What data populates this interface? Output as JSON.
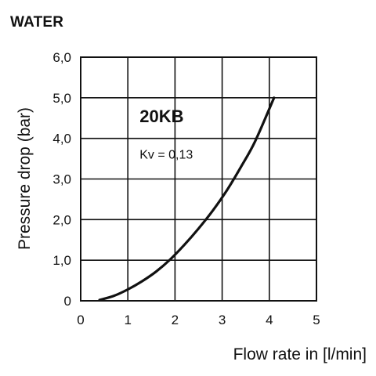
{
  "heading": "WATER",
  "chart_data": {
    "type": "line",
    "title": "",
    "xlabel": "Flow rate in [l/min]",
    "ylabel": "Pressure drop (bar)",
    "xlim": [
      0,
      5
    ],
    "ylim": [
      0,
      6
    ],
    "x_ticks": [
      {
        "value": 0,
        "label": "0"
      },
      {
        "value": 1,
        "label": "1"
      },
      {
        "value": 2,
        "label": "2"
      },
      {
        "value": 3,
        "label": "3"
      },
      {
        "value": 4,
        "label": "4"
      },
      {
        "value": 5,
        "label": "5"
      }
    ],
    "y_ticks": [
      {
        "value": 0,
        "label": "0"
      },
      {
        "value": 1,
        "label": "1,0"
      },
      {
        "value": 2,
        "label": "2,0"
      },
      {
        "value": 3,
        "label": "3,0"
      },
      {
        "value": 4,
        "label": "4,0"
      },
      {
        "value": 5,
        "label": "5,0"
      },
      {
        "value": 6,
        "label": "6,0"
      }
    ],
    "grid": true,
    "series": [
      {
        "points": [
          [
            0.4,
            0.02
          ],
          [
            0.7,
            0.12
          ],
          [
            1.0,
            0.28
          ],
          [
            1.3,
            0.48
          ],
          [
            1.6,
            0.72
          ],
          [
            1.9,
            1.02
          ],
          [
            2.2,
            1.38
          ],
          [
            2.5,
            1.78
          ],
          [
            2.8,
            2.22
          ],
          [
            3.1,
            2.72
          ],
          [
            3.4,
            3.3
          ],
          [
            3.7,
            3.93
          ],
          [
            4.1,
            5.0
          ]
        ],
        "color": "#111111"
      }
    ],
    "annotations": [
      {
        "text": "20KB",
        "x": 1.25,
        "y": 4.4,
        "style": "bold"
      },
      {
        "text": "Kv = 0,13",
        "x": 1.25,
        "y": 3.5,
        "style": "normal"
      }
    ]
  }
}
